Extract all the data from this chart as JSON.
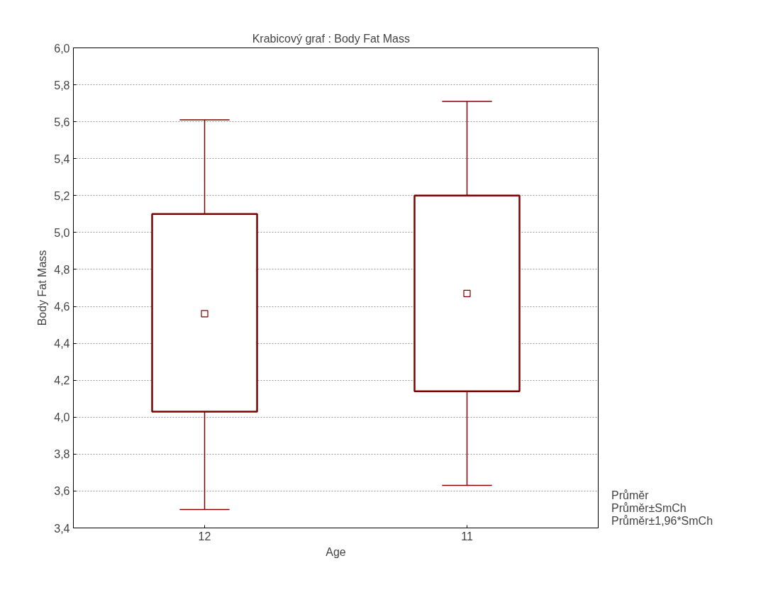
{
  "chart_data": {
    "type": "box",
    "title": "Krabicový  graf :   Body Fat Mass",
    "xlabel": "Age",
    "ylabel": "Body Fat Mass",
    "categories": [
      "12",
      "11"
    ],
    "color": "#800000",
    "boxes": [
      {
        "low": 3.5,
        "q1": 4.03,
        "q3": 5.1,
        "high": 5.61,
        "mean": 4.56
      },
      {
        "low": 3.63,
        "q1": 4.14,
        "q3": 5.2,
        "high": 5.71,
        "mean": 4.67
      }
    ],
    "ylim": [
      3.4,
      6.0
    ],
    "yticks": [
      {
        "value": 3.4,
        "label": "3,4"
      },
      {
        "value": 3.6,
        "label": "3,6"
      },
      {
        "value": 3.8,
        "label": "3,8"
      },
      {
        "value": 4.0,
        "label": "4,0"
      },
      {
        "value": 4.2,
        "label": "4,2"
      },
      {
        "value": 4.4,
        "label": "4,4"
      },
      {
        "value": 4.6,
        "label": "4,6"
      },
      {
        "value": 4.8,
        "label": "4,8"
      },
      {
        "value": 5.0,
        "label": "5,0"
      },
      {
        "value": 5.2,
        "label": "5,2"
      },
      {
        "value": 5.4,
        "label": "5,4"
      },
      {
        "value": 5.6,
        "label": "5,6"
      },
      {
        "value": 5.8,
        "label": "5,8"
      },
      {
        "value": 6.0,
        "label": "6,0"
      }
    ],
    "grid": "y",
    "marker": "square",
    "annotations": [
      "Průměr",
      "Průměr±SmCh",
      "Průměr±1,96*SmCh"
    ]
  }
}
